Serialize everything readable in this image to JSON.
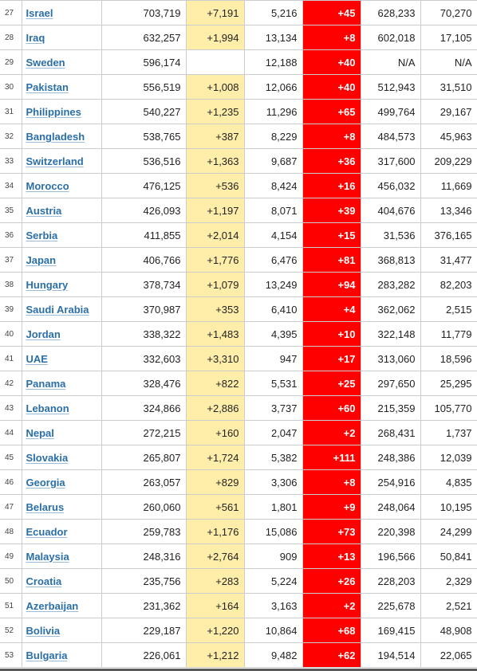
{
  "table": {
    "rows": [
      {
        "rank": "27",
        "country": "Israel",
        "total_cases": "703,719",
        "new_cases": "+7,191",
        "total_deaths": "5,216",
        "new_deaths": "+45",
        "total_recovered": "628,233",
        "active_cases": "70,270"
      },
      {
        "rank": "28",
        "country": "Iraq",
        "total_cases": "632,257",
        "new_cases": "+1,994",
        "total_deaths": "13,134",
        "new_deaths": "+8",
        "total_recovered": "602,018",
        "active_cases": "17,105"
      },
      {
        "rank": "29",
        "country": "Sweden",
        "total_cases": "596,174",
        "new_cases": "",
        "total_deaths": "12,188",
        "new_deaths": "+40",
        "total_recovered": "N/A",
        "active_cases": "N/A"
      },
      {
        "rank": "30",
        "country": "Pakistan",
        "total_cases": "556,519",
        "new_cases": "+1,008",
        "total_deaths": "12,066",
        "new_deaths": "+40",
        "total_recovered": "512,943",
        "active_cases": "31,510"
      },
      {
        "rank": "31",
        "country": "Philippines",
        "total_cases": "540,227",
        "new_cases": "+1,235",
        "total_deaths": "11,296",
        "new_deaths": "+65",
        "total_recovered": "499,764",
        "active_cases": "29,167"
      },
      {
        "rank": "32",
        "country": "Bangladesh",
        "total_cases": "538,765",
        "new_cases": "+387",
        "total_deaths": "8,229",
        "new_deaths": "+8",
        "total_recovered": "484,573",
        "active_cases": "45,963"
      },
      {
        "rank": "33",
        "country": "Switzerland",
        "total_cases": "536,516",
        "new_cases": "+1,363",
        "total_deaths": "9,687",
        "new_deaths": "+36",
        "total_recovered": "317,600",
        "active_cases": "209,229"
      },
      {
        "rank": "34",
        "country": "Morocco",
        "total_cases": "476,125",
        "new_cases": "+536",
        "total_deaths": "8,424",
        "new_deaths": "+16",
        "total_recovered": "456,032",
        "active_cases": "11,669"
      },
      {
        "rank": "35",
        "country": "Austria",
        "total_cases": "426,093",
        "new_cases": "+1,197",
        "total_deaths": "8,071",
        "new_deaths": "+39",
        "total_recovered": "404,676",
        "active_cases": "13,346"
      },
      {
        "rank": "36",
        "country": "Serbia",
        "total_cases": "411,855",
        "new_cases": "+2,014",
        "total_deaths": "4,154",
        "new_deaths": "+15",
        "total_recovered": "31,536",
        "active_cases": "376,165"
      },
      {
        "rank": "37",
        "country": "Japan",
        "total_cases": "406,766",
        "new_cases": "+1,776",
        "total_deaths": "6,476",
        "new_deaths": "+81",
        "total_recovered": "368,813",
        "active_cases": "31,477"
      },
      {
        "rank": "38",
        "country": "Hungary",
        "total_cases": "378,734",
        "new_cases": "+1,079",
        "total_deaths": "13,249",
        "new_deaths": "+94",
        "total_recovered": "283,282",
        "active_cases": "82,203"
      },
      {
        "rank": "39",
        "country": "Saudi Arabia",
        "total_cases": "370,987",
        "new_cases": "+353",
        "total_deaths": "6,410",
        "new_deaths": "+4",
        "total_recovered": "362,062",
        "active_cases": "2,515"
      },
      {
        "rank": "40",
        "country": "Jordan",
        "total_cases": "338,322",
        "new_cases": "+1,483",
        "total_deaths": "4,395",
        "new_deaths": "+10",
        "total_recovered": "322,148",
        "active_cases": "11,779"
      },
      {
        "rank": "41",
        "country": "UAE",
        "total_cases": "332,603",
        "new_cases": "+3,310",
        "total_deaths": "947",
        "new_deaths": "+17",
        "total_recovered": "313,060",
        "active_cases": "18,596"
      },
      {
        "rank": "42",
        "country": "Panama",
        "total_cases": "328,476",
        "new_cases": "+822",
        "total_deaths": "5,531",
        "new_deaths": "+25",
        "total_recovered": "297,650",
        "active_cases": "25,295"
      },
      {
        "rank": "43",
        "country": "Lebanon",
        "total_cases": "324,866",
        "new_cases": "+2,886",
        "total_deaths": "3,737",
        "new_deaths": "+60",
        "total_recovered": "215,359",
        "active_cases": "105,770"
      },
      {
        "rank": "44",
        "country": "Nepal",
        "total_cases": "272,215",
        "new_cases": "+160",
        "total_deaths": "2,047",
        "new_deaths": "+2",
        "total_recovered": "268,431",
        "active_cases": "1,737"
      },
      {
        "rank": "45",
        "country": "Slovakia",
        "total_cases": "265,807",
        "new_cases": "+1,724",
        "total_deaths": "5,382",
        "new_deaths": "+111",
        "total_recovered": "248,386",
        "active_cases": "12,039"
      },
      {
        "rank": "46",
        "country": "Georgia",
        "total_cases": "263,057",
        "new_cases": "+829",
        "total_deaths": "3,306",
        "new_deaths": "+8",
        "total_recovered": "254,916",
        "active_cases": "4,835"
      },
      {
        "rank": "47",
        "country": "Belarus",
        "total_cases": "260,060",
        "new_cases": "+561",
        "total_deaths": "1,801",
        "new_deaths": "+9",
        "total_recovered": "248,064",
        "active_cases": "10,195"
      },
      {
        "rank": "48",
        "country": "Ecuador",
        "total_cases": "259,783",
        "new_cases": "+1,176",
        "total_deaths": "15,086",
        "new_deaths": "+73",
        "total_recovered": "220,398",
        "active_cases": "24,299"
      },
      {
        "rank": "49",
        "country": "Malaysia",
        "total_cases": "248,316",
        "new_cases": "+2,764",
        "total_deaths": "909",
        "new_deaths": "+13",
        "total_recovered": "196,566",
        "active_cases": "50,841"
      },
      {
        "rank": "50",
        "country": "Croatia",
        "total_cases": "235,756",
        "new_cases": "+283",
        "total_deaths": "5,224",
        "new_deaths": "+26",
        "total_recovered": "228,203",
        "active_cases": "2,329"
      },
      {
        "rank": "51",
        "country": "Azerbaijan",
        "total_cases": "231,362",
        "new_cases": "+164",
        "total_deaths": "3,163",
        "new_deaths": "+2",
        "total_recovered": "225,678",
        "active_cases": "2,521"
      },
      {
        "rank": "52",
        "country": "Bolivia",
        "total_cases": "229,187",
        "new_cases": "+1,220",
        "total_deaths": "10,864",
        "new_deaths": "+68",
        "total_recovered": "169,415",
        "active_cases": "48,908"
      },
      {
        "rank": "53",
        "country": "Bulgaria",
        "total_cases": "226,061",
        "new_cases": "+1,212",
        "total_deaths": "9,482",
        "new_deaths": "+62",
        "total_recovered": "194,514",
        "active_cases": "22,065"
      }
    ]
  },
  "colors": {
    "new_cases_bg": "#ffeeaa",
    "new_deaths_bg": "#ff0000",
    "link": "#2a6fa8"
  }
}
